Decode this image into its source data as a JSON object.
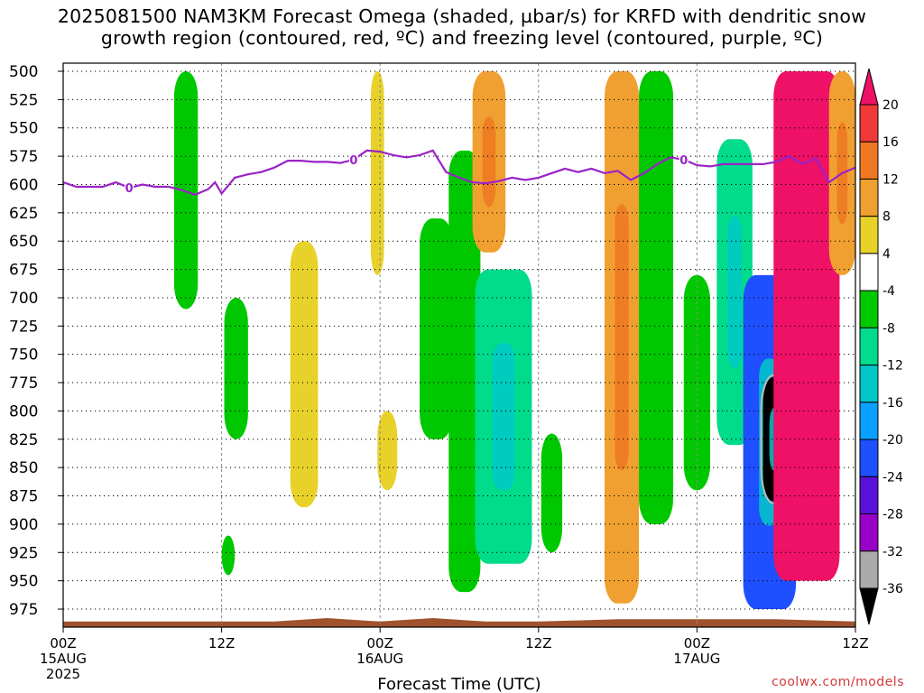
{
  "header": {
    "title_line1": "2025081500 NAM3KM Forecast Omega (shaded, µbar/s) for KRFD with dendritic snow",
    "title_line2": "growth region (contoured, red, ºC) and freezing level (contoured, purple, ºC)"
  },
  "credit": "coolwx.com/models",
  "colors": {
    "freezing_level": "#9a22c7",
    "ground": "#a0522d",
    "grid": "#777777"
  },
  "chart_data": {
    "type": "heatmap",
    "title": "2025081500 NAM3KM Forecast Omega (shaded, µbar/s) for KRFD with dendritic snow growth region (contoured, red, ºC) and freezing level (contoured, purple, ºC)",
    "xlabel": "Forecast Time (UTC)",
    "ylabel": "",
    "x_range_hours": [
      0,
      60
    ],
    "y_range_hpa": [
      500,
      1000
    ],
    "y_ticks": [
      500,
      525,
      550,
      575,
      600,
      625,
      650,
      675,
      700,
      725,
      750,
      775,
      800,
      825,
      850,
      875,
      900,
      925,
      950,
      975
    ],
    "x_ticks": [
      {
        "hour": 0,
        "label": "00Z",
        "date": "15AUG",
        "year": "2025"
      },
      {
        "hour": 12,
        "label": "12Z",
        "date": "",
        "year": ""
      },
      {
        "hour": 24,
        "label": "00Z",
        "date": "16AUG",
        "year": ""
      },
      {
        "hour": 36,
        "label": "12Z",
        "date": "",
        "year": ""
      },
      {
        "hour": 48,
        "label": "00Z",
        "date": "17AUG",
        "year": ""
      },
      {
        "hour": 60,
        "label": "12Z",
        "date": "",
        "year": ""
      }
    ],
    "grid": true,
    "colorbar": {
      "labels": [
        "20",
        "16",
        "12",
        "8",
        "4",
        "-4",
        "-8",
        "-12",
        "-16",
        "-20",
        "-24",
        "-28",
        "-32",
        "-36"
      ],
      "colors": [
        "#ee1166",
        "#f03a3a",
        "#ee7722",
        "#f0a030",
        "#e8d22a",
        "#ffffff",
        "#00c800",
        "#00dc8c",
        "#00c8c8",
        "#0aa0ff",
        "#1e50ff",
        "#5a10d8",
        "#9a00c8",
        "#aaaaaa",
        "#000000"
      ]
    },
    "freezing_level": {
      "label": "0",
      "label_hours": [
        5,
        22,
        47
      ],
      "hours": [
        0,
        1,
        2,
        3,
        4,
        5,
        6,
        7,
        8,
        9,
        10,
        11,
        11.5,
        12,
        13,
        14,
        15,
        16,
        17,
        18,
        19,
        20,
        21,
        22,
        23,
        24,
        25,
        26,
        27,
        28,
        29,
        30,
        31,
        32,
        33,
        34,
        35,
        36,
        37,
        38,
        39,
        40,
        41,
        42,
        43,
        44,
        45,
        46,
        47,
        48,
        49,
        50,
        51,
        52,
        53,
        54,
        55,
        56,
        57,
        58,
        59,
        60
      ],
      "hpa": [
        598,
        602,
        602,
        602,
        598,
        603,
        600,
        602,
        602,
        605,
        609,
        604,
        598,
        608,
        594,
        591,
        589,
        585,
        579,
        579,
        580,
        580,
        581,
        578,
        570,
        571,
        574,
        576,
        574,
        570,
        589,
        594,
        598,
        599,
        597,
        594,
        596,
        594,
        590,
        586,
        589,
        586,
        590,
        588,
        596,
        590,
        582,
        576,
        578,
        583,
        584,
        582,
        582,
        582,
        582,
        580,
        575,
        582,
        577,
        598,
        590,
        585
      ]
    },
    "omega_features": [
      {
        "hour_start": 8.4,
        "hour_end": 10.2,
        "p_top": 500,
        "p_bottom": 710,
        "value": -6
      },
      {
        "hour_start": 12.2,
        "hour_end": 14.0,
        "p_top": 700,
        "p_bottom": 825,
        "value": -6
      },
      {
        "hour_start": 12.0,
        "hour_end": 13.0,
        "p_top": 910,
        "p_bottom": 945,
        "value": -6
      },
      {
        "hour_start": 17.2,
        "hour_end": 19.3,
        "p_top": 650,
        "p_bottom": 885,
        "value": 5
      },
      {
        "hour_start": 23.3,
        "hour_end": 24.3,
        "p_top": 500,
        "p_bottom": 680,
        "value": 5
      },
      {
        "hour_start": 23.8,
        "hour_end": 25.3,
        "p_top": 800,
        "p_bottom": 870,
        "value": 5
      },
      {
        "hour_start": 27.0,
        "hour_end": 29.5,
        "p_top": 630,
        "p_bottom": 825,
        "value": -6
      },
      {
        "hour_start": 29.2,
        "hour_end": 31.6,
        "p_top": 570,
        "p_bottom": 960,
        "value": -7
      },
      {
        "hour_start": 31.0,
        "hour_end": 33.5,
        "p_top": 500,
        "p_bottom": 660,
        "value": 10
      },
      {
        "hour_start": 31.2,
        "hour_end": 35.5,
        "p_top": 675,
        "p_bottom": 935,
        "value": -8
      },
      {
        "hour_start": 36.2,
        "hour_end": 37.8,
        "p_top": 820,
        "p_bottom": 925,
        "value": -7
      },
      {
        "hour_start": 41.0,
        "hour_end": 43.6,
        "p_top": 500,
        "p_bottom": 970,
        "value": 10
      },
      {
        "hour_start": 43.6,
        "hour_end": 46.2,
        "p_top": 500,
        "p_bottom": 900,
        "value": -7
      },
      {
        "hour_start": 47.0,
        "hour_end": 49.0,
        "p_top": 680,
        "p_bottom": 870,
        "value": -6
      },
      {
        "hour_start": 49.5,
        "hour_end": 52.2,
        "p_top": 560,
        "p_bottom": 830,
        "value": -8
      },
      {
        "hour_start": 51.5,
        "hour_end": 55.5,
        "p_top": 680,
        "p_bottom": 975,
        "value": -20
      },
      {
        "hour_start": 53.0,
        "hour_end": 54.6,
        "p_top": 770,
        "p_bottom": 880,
        "value": -38
      },
      {
        "hour_start": 53.8,
        "hour_end": 58.8,
        "p_top": 500,
        "p_bottom": 950,
        "value": 22
      },
      {
        "hour_start": 58.0,
        "hour_end": 60.0,
        "p_top": 500,
        "p_bottom": 680,
        "value": 9
      }
    ],
    "ground": {
      "hours": [
        0,
        8,
        16,
        20,
        24,
        28,
        32,
        36,
        42,
        48,
        54,
        60
      ],
      "hpa": [
        986,
        986,
        986,
        983,
        986,
        983,
        986,
        986,
        984,
        984,
        984,
        986
      ]
    }
  }
}
